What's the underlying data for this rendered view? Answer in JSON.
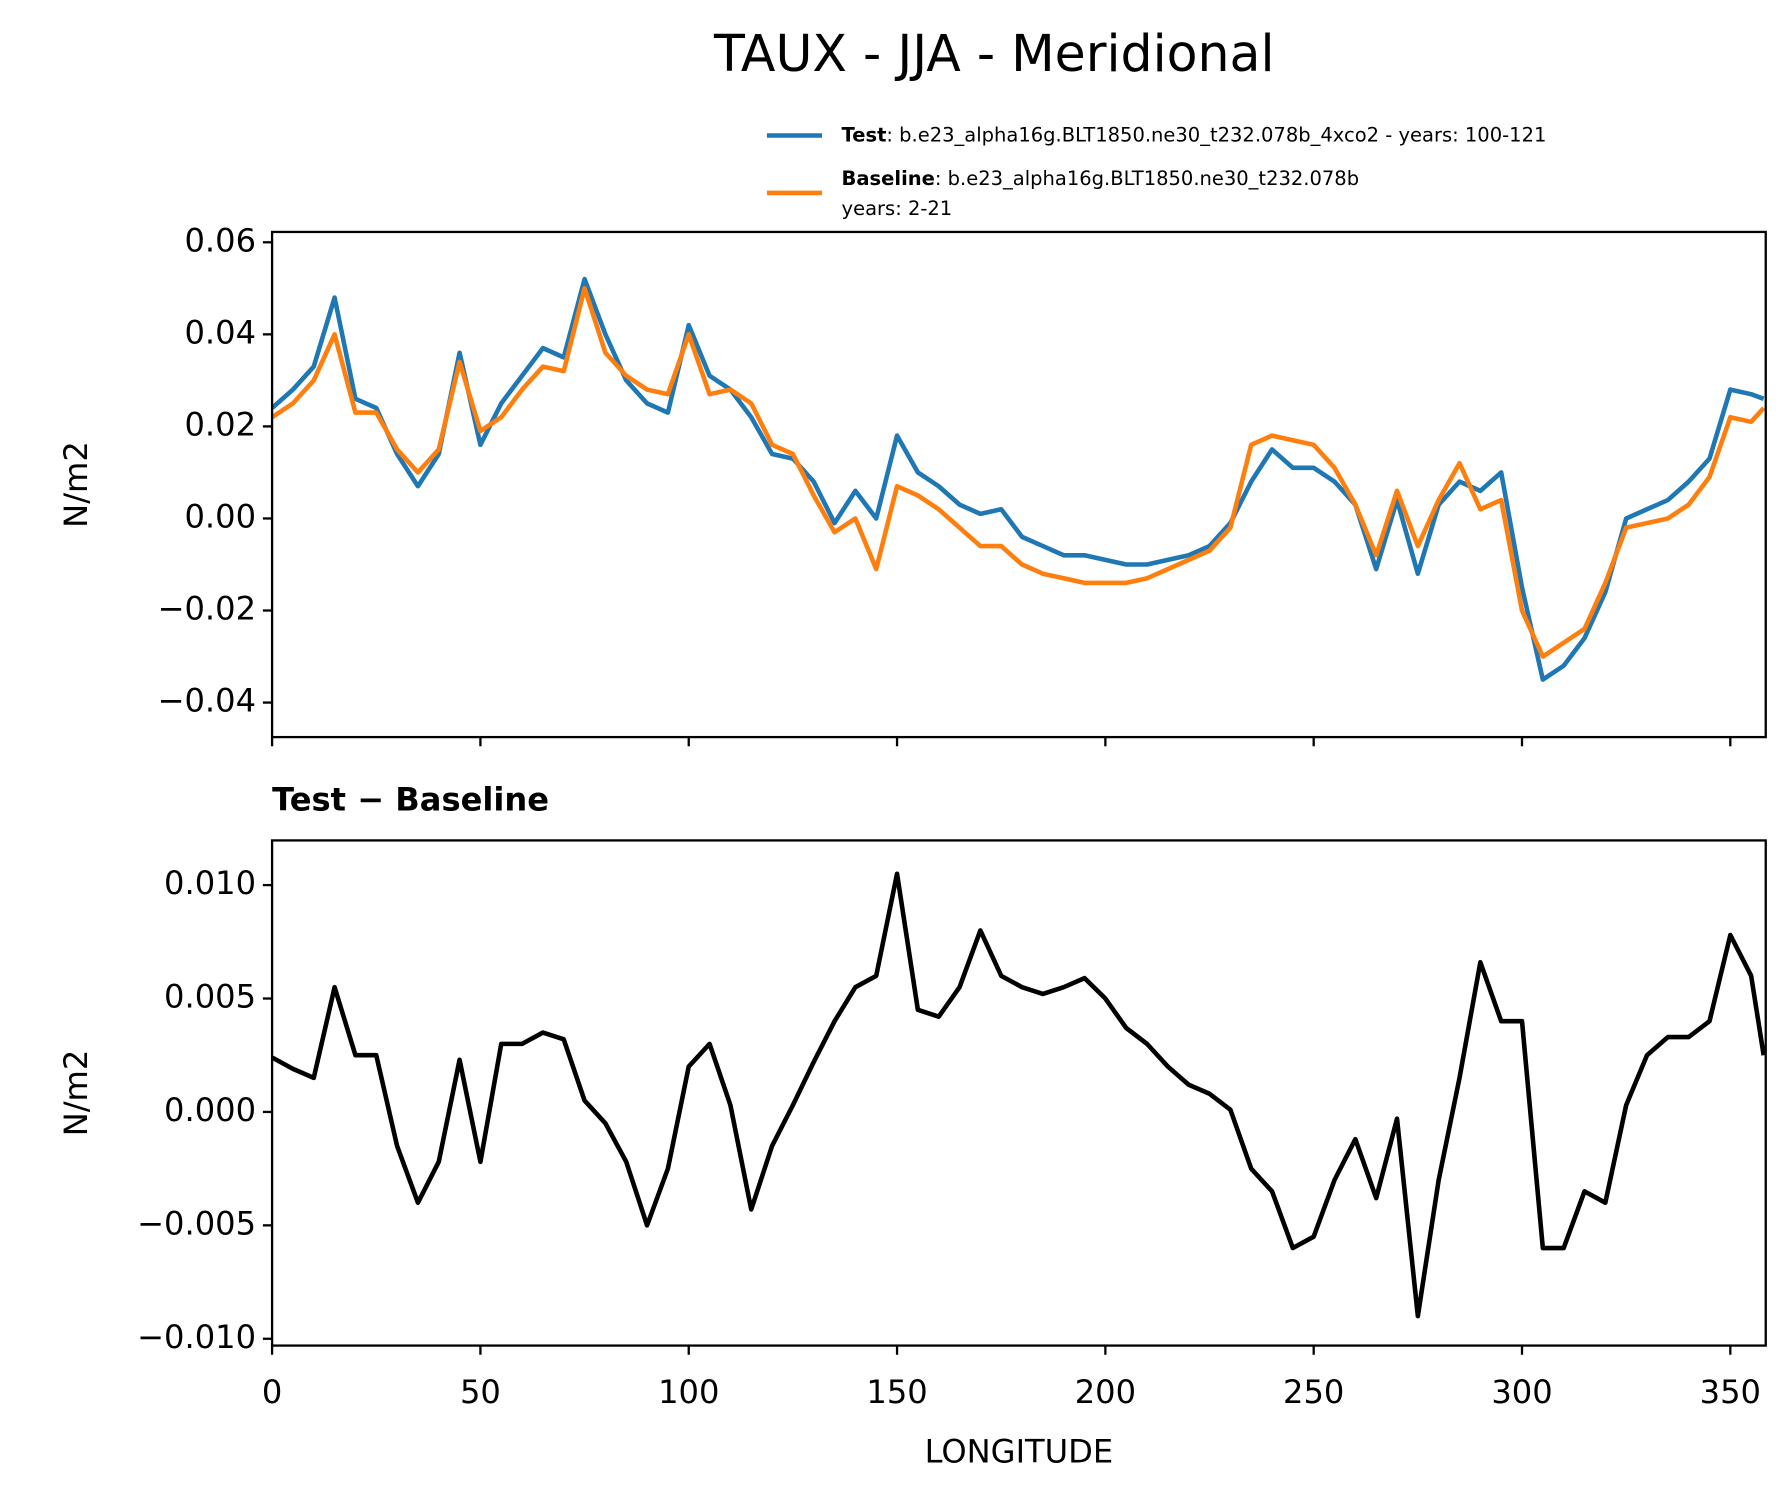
{
  "title": "TAUX - JJA - Meridional",
  "chart_data": [
    {
      "type": "line",
      "ylabel": "N/m2",
      "x": [
        0,
        5,
        10,
        15,
        20,
        25,
        30,
        35,
        40,
        45,
        50,
        55,
        60,
        65,
        70,
        75,
        80,
        85,
        90,
        95,
        100,
        105,
        110,
        115,
        120,
        125,
        130,
        135,
        140,
        145,
        150,
        155,
        160,
        165,
        170,
        175,
        180,
        185,
        190,
        195,
        200,
        205,
        210,
        215,
        220,
        225,
        230,
        235,
        240,
        245,
        250,
        255,
        260,
        265,
        270,
        275,
        280,
        285,
        290,
        295,
        300,
        305,
        310,
        315,
        320,
        325,
        330,
        335,
        340,
        345,
        350,
        355,
        358
      ],
      "series": [
        {
          "name": "Test",
          "label_detail": [
            ": b.e23_alpha16g.BLT1850.ne30_t232.078b_4xco2 - years: 100-121"
          ],
          "color": "#1f77b4",
          "values": [
            0.024,
            0.028,
            0.033,
            0.048,
            0.026,
            0.024,
            0.014,
            0.007,
            0.014,
            0.036,
            0.016,
            0.025,
            0.031,
            0.037,
            0.035,
            0.052,
            0.04,
            0.03,
            0.025,
            0.023,
            0.042,
            0.031,
            0.028,
            0.022,
            0.014,
            0.013,
            0.008,
            -0.001,
            0.006,
            0.0,
            0.018,
            0.01,
            0.007,
            0.003,
            0.001,
            0.002,
            -0.004,
            -0.006,
            -0.008,
            -0.008,
            -0.009,
            -0.01,
            -0.01,
            -0.009,
            -0.008,
            -0.006,
            -0.001,
            0.008,
            0.015,
            0.011,
            0.011,
            0.008,
            0.003,
            -0.011,
            0.004,
            -0.012,
            0.003,
            0.008,
            0.006,
            0.01,
            -0.015,
            -0.035,
            -0.032,
            -0.026,
            -0.016,
            0.0,
            0.002,
            0.004,
            0.008,
            0.013,
            0.028,
            0.027,
            0.026
          ]
        },
        {
          "name": "Baseline",
          "label_detail": [
            ": b.e23_alpha16g.BLT1850.ne30_t232.078b",
            "years: 2-21"
          ],
          "color": "#ff7f0e",
          "values": [
            0.022,
            0.025,
            0.03,
            0.04,
            0.023,
            0.023,
            0.015,
            0.01,
            0.015,
            0.034,
            0.019,
            0.022,
            0.028,
            0.033,
            0.032,
            0.05,
            0.036,
            0.031,
            0.028,
            0.027,
            0.04,
            0.027,
            0.028,
            0.025,
            0.016,
            0.014,
            0.005,
            -0.003,
            0.0,
            -0.011,
            0.007,
            0.005,
            0.002,
            -0.002,
            -0.006,
            -0.006,
            -0.01,
            -0.012,
            -0.013,
            -0.014,
            -0.014,
            -0.014,
            -0.013,
            -0.011,
            -0.009,
            -0.007,
            -0.002,
            0.016,
            0.018,
            0.017,
            0.016,
            0.011,
            0.003,
            -0.008,
            0.006,
            -0.006,
            0.004,
            0.012,
            0.002,
            0.004,
            -0.02,
            -0.03,
            -0.027,
            -0.024,
            -0.014,
            -0.002,
            -0.001,
            0.0,
            0.003,
            0.009,
            0.022,
            0.021,
            0.024
          ]
        }
      ],
      "xlim": [
        0,
        358.5
      ],
      "xticks": [
        0,
        50,
        100,
        150,
        200,
        250,
        300,
        350
      ],
      "ylim": [
        -0.0475,
        0.06225
      ],
      "yticks": [
        0.06,
        0.04,
        0.02,
        {
          "value": 0,
          "label": "0.00"
        },
        {
          "value": -0.02,
          "label": "−0.02"
        },
        {
          "value": -0.04,
          "label": "−0.04"
        }
      ]
    },
    {
      "type": "line",
      "title": "Test − Baseline",
      "ylabel": "N/m2",
      "xlabel": "LONGITUDE",
      "x": [
        0,
        5,
        10,
        15,
        20,
        25,
        30,
        35,
        40,
        45,
        50,
        55,
        60,
        65,
        70,
        75,
        80,
        85,
        90,
        95,
        100,
        105,
        110,
        115,
        120,
        125,
        130,
        135,
        140,
        145,
        150,
        155,
        160,
        165,
        170,
        175,
        180,
        185,
        190,
        195,
        200,
        205,
        210,
        215,
        220,
        225,
        230,
        235,
        240,
        245,
        250,
        255,
        260,
        265,
        270,
        275,
        280,
        285,
        290,
        295,
        300,
        305,
        310,
        315,
        320,
        325,
        330,
        335,
        340,
        345,
        350,
        355,
        358
      ],
      "series": [
        {
          "color": "#000000",
          "values": [
            0.0024,
            0.0019,
            0.0015,
            0.0055,
            0.0025,
            0.0025,
            -0.0015,
            -0.004,
            -0.0022,
            0.0023,
            -0.0022,
            0.003,
            0.003,
            0.0035,
            0.0032,
            0.0005,
            -0.0005,
            -0.0022,
            -0.005,
            -0.0025,
            0.002,
            0.003,
            0.0003,
            -0.0043,
            -0.0015,
            0.0003,
            0.0022,
            0.004,
            0.0055,
            0.006,
            0.0105,
            0.0045,
            0.0042,
            0.0055,
            0.008,
            0.006,
            0.0055,
            0.0052,
            0.0055,
            0.0059,
            0.005,
            0.0037,
            0.003,
            0.002,
            0.0012,
            0.0008,
            0.0001,
            -0.0025,
            -0.0035,
            -0.006,
            -0.0055,
            -0.003,
            -0.0012,
            -0.0038,
            -0.0003,
            -0.009,
            -0.003,
            0.0015,
            0.0066,
            0.004,
            0.004,
            -0.006,
            -0.006,
            -0.0035,
            -0.004,
            0.0003,
            0.0025,
            0.0033,
            0.0033,
            0.004,
            0.0078,
            0.006,
            0.0025
          ]
        }
      ],
      "xlim": [
        0,
        358.5
      ],
      "xticks": [
        0,
        50,
        100,
        150,
        200,
        250,
        300,
        350
      ],
      "ylim": [
        -0.0103,
        0.01197
      ],
      "yticks": [
        {
          "value": 0.01,
          "label": "0.010"
        },
        0.005,
        {
          "value": 0,
          "label": "0.000"
        },
        {
          "value": -0.005,
          "label": "−0.005"
        },
        {
          "value": -0.01,
          "label": "−0.010"
        }
      ]
    }
  ]
}
